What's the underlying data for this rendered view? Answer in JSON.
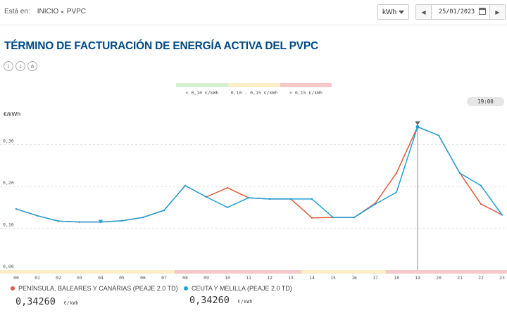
{
  "breadcrumb": {
    "label": "Está en:",
    "home": "INICIO",
    "current": "PVPC"
  },
  "unit_select": {
    "value": "kWh"
  },
  "date_picker": {
    "value": "25/01/2023"
  },
  "page_title": "TÉRMINO DE FACTURACIÓN DE ENERGÍA ACTIVA DEL PVPC",
  "toolbar_icons": [
    "info-icon",
    "download-icon",
    "share-icon"
  ],
  "price_legend": [
    {
      "label": "< 0,10 €/kWh",
      "color": "#d5efcf"
    },
    {
      "label": "0,10 - 0,15 €/kWh",
      "color": "#fbeec8"
    },
    {
      "label": "> 0,15 €/kWh",
      "color": "#f6c8c8"
    }
  ],
  "selected_time": "19:00",
  "series_summary": [
    {
      "name": "PENÍNSULA, BALEARES Y CANARIAS (PEAJE 2.0 TD)",
      "color": "#e05a3a",
      "value": "0,34260",
      "unit": "€/kWh"
    },
    {
      "name": "CEUTA Y MELILLA (PEAJE 2.0 TD)",
      "color": "#1fa0d8",
      "value": "0,34260",
      "unit": "€/kWh"
    }
  ],
  "chart_data": {
    "type": "line",
    "ylabel": "€/kWh",
    "ylim": [
      0,
      0.36
    ],
    "ytick_values": [
      0,
      0.1,
      0.2,
      0.3
    ],
    "ytick_labels": [
      "0,00",
      "0,10",
      "0,20",
      "0,30"
    ],
    "x": [
      "00",
      "01",
      "02",
      "03",
      "04",
      "05",
      "06",
      "07",
      "08",
      "09",
      "10",
      "11",
      "12",
      "13",
      "14",
      "15",
      "16",
      "17",
      "18",
      "19",
      "20",
      "21",
      "22",
      "23"
    ],
    "selected_hour": "19",
    "grid": true,
    "hour_band_colors": [
      "#fbeec8",
      "#fbeec8",
      "#fbeec8",
      "#fbeec8",
      "#fbeec8",
      "#fbeec8",
      "#fbeec8",
      "#fbeec8",
      "#f6c8c8",
      "#f6c8c8",
      "#f6c8c8",
      "#f6c8c8",
      "#f6c8c8",
      "#f6c8c8",
      "#fbeec8",
      "#fbeec8",
      "#fbeec8",
      "#fbeec8",
      "#f6c8c8",
      "#f6c8c8",
      "#f6c8c8",
      "#f6c8c8",
      "#f6c8c8",
      "#f6c8c8"
    ],
    "series": [
      {
        "name": "PENÍNSULA, BALEARES Y CANARIAS (PEAJE 2.0 TD)",
        "color": "#e05a3a",
        "values": [
          0.146,
          0.13,
          0.117,
          0.115,
          0.115,
          0.118,
          0.126,
          0.143,
          0.202,
          0.175,
          0.197,
          0.173,
          0.17,
          0.17,
          0.125,
          0.126,
          0.126,
          0.16,
          0.232,
          0.3426,
          0.322,
          0.232,
          0.158,
          0.132
        ]
      },
      {
        "name": "CEUTA Y MELILLA (PEAJE 2.0 TD)",
        "color": "#1fa0d8",
        "values": [
          0.146,
          0.13,
          0.117,
          0.115,
          0.115,
          0.118,
          0.126,
          0.143,
          0.202,
          0.175,
          0.15,
          0.173,
          0.17,
          0.17,
          0.17,
          0.126,
          0.126,
          0.158,
          0.186,
          0.3426,
          0.322,
          0.232,
          0.202,
          0.132
        ]
      }
    ]
  }
}
